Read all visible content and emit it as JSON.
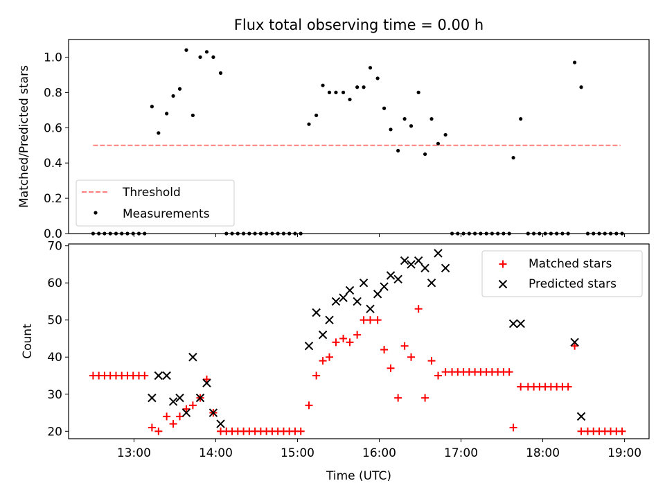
{
  "title": "Flux total observing time = 0.00 h",
  "colors": {
    "threshold": "#ff7f7f",
    "measurements": "#000000",
    "matched": "#ff0000",
    "predicted": "#000000",
    "axes": "#000000"
  },
  "chart_data": [
    {
      "type": "scatter",
      "panel": "top",
      "xlabel": "",
      "ylabel": "Matched/Predicted stars",
      "x_unit": "hours (UTC)",
      "xlim": [
        12.2,
        19.3
      ],
      "ylim": [
        0.0,
        1.1
      ],
      "yticks": [
        0.0,
        0.2,
        0.4,
        0.6,
        0.8,
        1.0
      ],
      "ytick_labels": [
        "0.0",
        "0.2",
        "0.4",
        "0.6",
        "0.8",
        "1.0"
      ],
      "legend": {
        "position": "lower-left",
        "entries": [
          {
            "label": "Threshold",
            "marker": "dashed-line"
          },
          {
            "label": "Measurements",
            "marker": "dot"
          }
        ]
      },
      "threshold": {
        "name": "Threshold",
        "y": 0.5,
        "x_start": 12.5,
        "x_end": 18.95
      },
      "series": [
        {
          "name": "Measurements",
          "marker": "dot",
          "points": [
            [
              12.5,
              0
            ],
            [
              12.57,
              0
            ],
            [
              12.64,
              0
            ],
            [
              12.71,
              0
            ],
            [
              12.78,
              0
            ],
            [
              12.85,
              0
            ],
            [
              12.92,
              0
            ],
            [
              12.99,
              0
            ],
            [
              13.06,
              0
            ],
            [
              13.13,
              0
            ],
            [
              13.22,
              0.72
            ],
            [
              13.3,
              0.57
            ],
            [
              13.4,
              0.68
            ],
            [
              13.48,
              0.78
            ],
            [
              13.56,
              0.82
            ],
            [
              13.64,
              1.04
            ],
            [
              13.72,
              0.67
            ],
            [
              13.81,
              1.0
            ],
            [
              13.89,
              1.03
            ],
            [
              13.97,
              1.0
            ],
            [
              14.06,
              0.91
            ],
            [
              14.13,
              0
            ],
            [
              14.2,
              0
            ],
            [
              14.27,
              0
            ],
            [
              14.34,
              0
            ],
            [
              14.41,
              0
            ],
            [
              14.48,
              0
            ],
            [
              14.55,
              0
            ],
            [
              14.62,
              0
            ],
            [
              14.69,
              0
            ],
            [
              14.76,
              0
            ],
            [
              14.83,
              0
            ],
            [
              14.9,
              0
            ],
            [
              14.97,
              0
            ],
            [
              15.04,
              0
            ],
            [
              15.14,
              0.62
            ],
            [
              15.23,
              0.67
            ],
            [
              15.31,
              0.84
            ],
            [
              15.39,
              0.8
            ],
            [
              15.47,
              0.8
            ],
            [
              15.56,
              0.8
            ],
            [
              15.64,
              0.76
            ],
            [
              15.73,
              0.83
            ],
            [
              15.81,
              0.83
            ],
            [
              15.89,
              0.94
            ],
            [
              15.98,
              0.88
            ],
            [
              16.06,
              0.71
            ],
            [
              16.14,
              0.59
            ],
            [
              16.23,
              0.47
            ],
            [
              16.31,
              0.65
            ],
            [
              16.39,
              0.61
            ],
            [
              16.48,
              0.8
            ],
            [
              16.56,
              0.45
            ],
            [
              16.64,
              0.65
            ],
            [
              16.72,
              0.51
            ],
            [
              16.81,
              0.56
            ],
            [
              16.89,
              0
            ],
            [
              16.96,
              0
            ],
            [
              17.03,
              0
            ],
            [
              17.1,
              0
            ],
            [
              17.17,
              0
            ],
            [
              17.24,
              0
            ],
            [
              17.31,
              0
            ],
            [
              17.38,
              0
            ],
            [
              17.45,
              0
            ],
            [
              17.52,
              0
            ],
            [
              17.59,
              0
            ],
            [
              17.64,
              0.43
            ],
            [
              17.73,
              0.65
            ],
            [
              17.82,
              0
            ],
            [
              17.89,
              0
            ],
            [
              17.96,
              0
            ],
            [
              18.03,
              0
            ],
            [
              18.1,
              0
            ],
            [
              18.17,
              0
            ],
            [
              18.24,
              0
            ],
            [
              18.31,
              0
            ],
            [
              18.39,
              0.97
            ],
            [
              18.47,
              0.83
            ],
            [
              18.55,
              0
            ],
            [
              18.62,
              0
            ],
            [
              18.69,
              0
            ],
            [
              18.76,
              0
            ],
            [
              18.83,
              0
            ],
            [
              18.9,
              0
            ],
            [
              18.97,
              0
            ]
          ]
        }
      ]
    },
    {
      "type": "scatter",
      "panel": "bottom",
      "xlabel": "Time (UTC)",
      "ylabel": "Count",
      "x_unit": "hours (UTC)",
      "xlim": [
        12.2,
        19.3
      ],
      "ylim": [
        18,
        70.5
      ],
      "xticks": [
        13,
        14,
        15,
        16,
        17,
        18,
        19
      ],
      "xtick_labels": [
        "13:00",
        "14:00",
        "15:00",
        "16:00",
        "17:00",
        "18:00",
        "19:00"
      ],
      "yticks": [
        20,
        30,
        40,
        50,
        60,
        70
      ],
      "ytick_labels": [
        "20",
        "30",
        "40",
        "50",
        "60",
        "70"
      ],
      "legend": {
        "position": "upper-right",
        "entries": [
          {
            "label": "Matched stars",
            "marker": "plus"
          },
          {
            "label": "Predicted stars",
            "marker": "x"
          }
        ]
      },
      "series": [
        {
          "name": "Matched stars",
          "marker": "plus",
          "points": [
            [
              12.5,
              35
            ],
            [
              12.57,
              35
            ],
            [
              12.64,
              35
            ],
            [
              12.71,
              35
            ],
            [
              12.78,
              35
            ],
            [
              12.85,
              35
            ],
            [
              12.92,
              35
            ],
            [
              12.99,
              35
            ],
            [
              13.06,
              35
            ],
            [
              13.13,
              35
            ],
            [
              13.22,
              21
            ],
            [
              13.3,
              20
            ],
            [
              13.4,
              24
            ],
            [
              13.48,
              22
            ],
            [
              13.56,
              24
            ],
            [
              13.64,
              26
            ],
            [
              13.72,
              27
            ],
            [
              13.81,
              29
            ],
            [
              13.89,
              34
            ],
            [
              13.97,
              25
            ],
            [
              14.06,
              20
            ],
            [
              14.13,
              20
            ],
            [
              14.2,
              20
            ],
            [
              14.27,
              20
            ],
            [
              14.34,
              20
            ],
            [
              14.41,
              20
            ],
            [
              14.48,
              20
            ],
            [
              14.55,
              20
            ],
            [
              14.62,
              20
            ],
            [
              14.69,
              20
            ],
            [
              14.76,
              20
            ],
            [
              14.83,
              20
            ],
            [
              14.9,
              20
            ],
            [
              14.97,
              20
            ],
            [
              15.04,
              20
            ],
            [
              15.14,
              27
            ],
            [
              15.23,
              35
            ],
            [
              15.31,
              39
            ],
            [
              15.39,
              40
            ],
            [
              15.47,
              44
            ],
            [
              15.56,
              45
            ],
            [
              15.64,
              44
            ],
            [
              15.73,
              46
            ],
            [
              15.81,
              50
            ],
            [
              15.89,
              50
            ],
            [
              15.98,
              50
            ],
            [
              16.06,
              42
            ],
            [
              16.14,
              37
            ],
            [
              16.23,
              29
            ],
            [
              16.31,
              43
            ],
            [
              16.39,
              40
            ],
            [
              16.48,
              53
            ],
            [
              16.56,
              29
            ],
            [
              16.64,
              39
            ],
            [
              16.72,
              35
            ],
            [
              16.81,
              36
            ],
            [
              16.89,
              36
            ],
            [
              16.96,
              36
            ],
            [
              17.03,
              36
            ],
            [
              17.1,
              36
            ],
            [
              17.17,
              36
            ],
            [
              17.24,
              36
            ],
            [
              17.31,
              36
            ],
            [
              17.38,
              36
            ],
            [
              17.45,
              36
            ],
            [
              17.52,
              36
            ],
            [
              17.59,
              36
            ],
            [
              17.64,
              21
            ],
            [
              17.73,
              32
            ],
            [
              17.82,
              32
            ],
            [
              17.89,
              32
            ],
            [
              17.96,
              32
            ],
            [
              18.03,
              32
            ],
            [
              18.1,
              32
            ],
            [
              18.17,
              32
            ],
            [
              18.24,
              32
            ],
            [
              18.31,
              32
            ],
            [
              18.39,
              43
            ],
            [
              18.47,
              20
            ],
            [
              18.55,
              20
            ],
            [
              18.62,
              20
            ],
            [
              18.69,
              20
            ],
            [
              18.76,
              20
            ],
            [
              18.83,
              20
            ],
            [
              18.9,
              20
            ],
            [
              18.97,
              20
            ]
          ]
        },
        {
          "name": "Predicted stars",
          "marker": "x",
          "points": [
            [
              13.22,
              29
            ],
            [
              13.3,
              35
            ],
            [
              13.4,
              35
            ],
            [
              13.48,
              28
            ],
            [
              13.56,
              29
            ],
            [
              13.64,
              25
            ],
            [
              13.72,
              40
            ],
            [
              13.81,
              29
            ],
            [
              13.89,
              33
            ],
            [
              13.97,
              25
            ],
            [
              14.06,
              22
            ],
            [
              15.14,
              43
            ],
            [
              15.23,
              52
            ],
            [
              15.31,
              46
            ],
            [
              15.39,
              50
            ],
            [
              15.47,
              55
            ],
            [
              15.56,
              56
            ],
            [
              15.64,
              58
            ],
            [
              15.73,
              55
            ],
            [
              15.81,
              60
            ],
            [
              15.89,
              53
            ],
            [
              15.98,
              57
            ],
            [
              16.06,
              59
            ],
            [
              16.14,
              62
            ],
            [
              16.23,
              61
            ],
            [
              16.31,
              66
            ],
            [
              16.39,
              65
            ],
            [
              16.48,
              66
            ],
            [
              16.56,
              64
            ],
            [
              16.64,
              60
            ],
            [
              16.72,
              68
            ],
            [
              16.81,
              64
            ],
            [
              17.64,
              49
            ],
            [
              17.73,
              49
            ],
            [
              18.39,
              44
            ],
            [
              18.47,
              24
            ]
          ]
        }
      ]
    }
  ]
}
